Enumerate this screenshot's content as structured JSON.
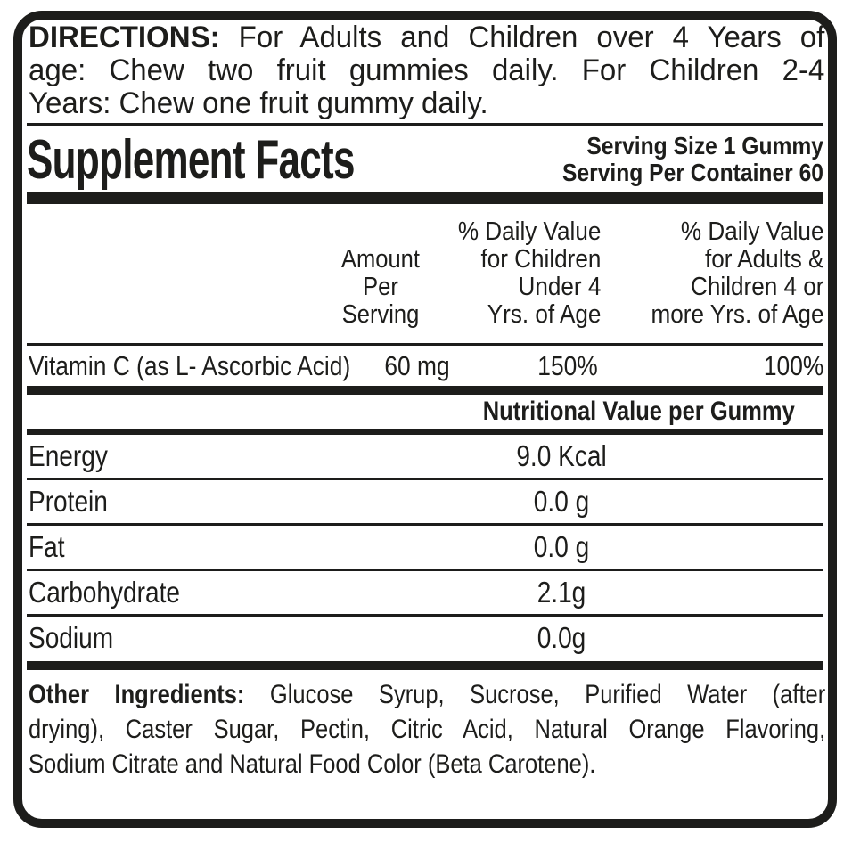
{
  "colors": {
    "ink": "#1d1d1b",
    "background": "#ffffff"
  },
  "directions": {
    "label": "DIRECTIONS:",
    "lines": [
      "For Adults and Children over 4 Years of",
      "age: Chew two fruit gummies daily. For Children 2-4",
      "Years: Chew one fruit gummy daily."
    ]
  },
  "supplement_facts": {
    "title": "Supplement Facts",
    "serving_size": "Serving Size 1 Gummy",
    "servings_per_container": "Serving Per Container 60"
  },
  "table": {
    "columns": {
      "amount": [
        "Amount",
        "Per",
        "Serving"
      ],
      "dv_children": [
        "% Daily Value",
        "for Children",
        "Under 4",
        "Yrs. of Age"
      ],
      "dv_adults": [
        "% Daily Value",
        "for Adults &",
        "Children 4 or",
        "more Yrs. of Age"
      ]
    },
    "rows": [
      {
        "name": "Vitamin C (as L- Ascorbic Acid)",
        "amount": "60 mg",
        "dv_children": "150%",
        "dv_adults": "100%"
      }
    ]
  },
  "nutritional_values": {
    "section_title": "Nutritional Value per Gummy",
    "rows": [
      {
        "label": "Energy",
        "value": "9.0 Kcal"
      },
      {
        "label": "Protein",
        "value": "0.0 g"
      },
      {
        "label": "Fat",
        "value": "0.0 g"
      },
      {
        "label": "Carbohydrate",
        "value": "2.1g"
      },
      {
        "label": "Sodium",
        "value": "0.0g"
      }
    ]
  },
  "other_ingredients": {
    "label": "Other Ingredients:",
    "lines": [
      "Glucose Syrup, Sucrose, Purified Water (after",
      "drying), Caster Sugar, Pectin, Citric Acid, Natural Orange Flavoring,",
      "Sodium Citrate and Natural Food Color (Beta Carotene)."
    ]
  }
}
